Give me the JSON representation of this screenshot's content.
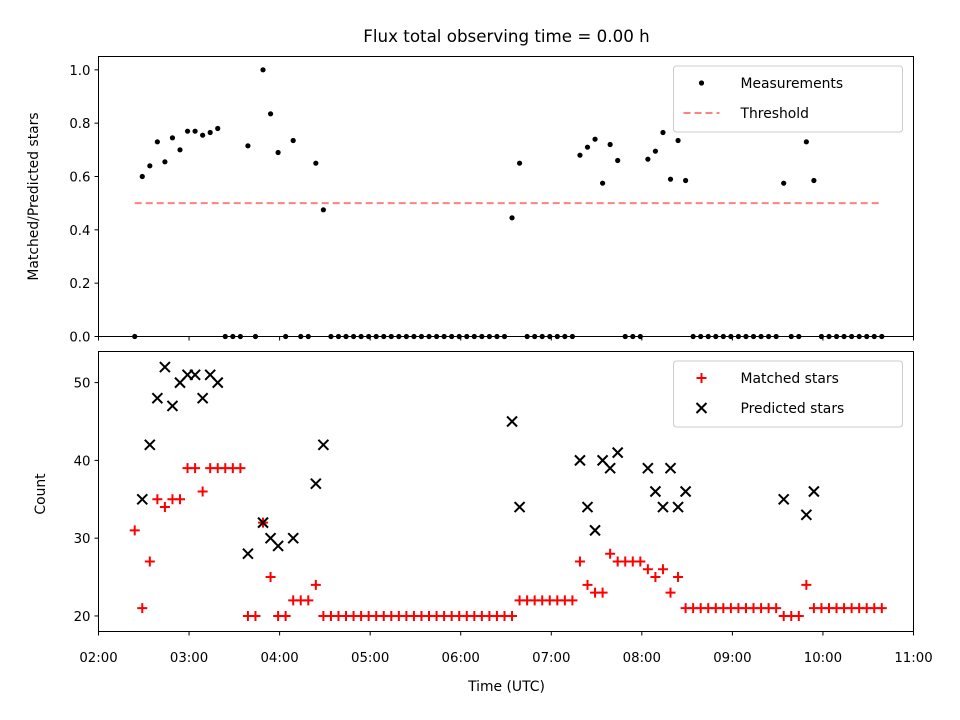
{
  "chart_data": {
    "type": "scatter",
    "title": "Flux total observing time = 0.00 h",
    "xlabel": "Time (UTC)",
    "x_ticks": [
      "02:00",
      "03:00",
      "04:00",
      "05:00",
      "06:00",
      "07:00",
      "08:00",
      "09:00",
      "10:00",
      "11:00"
    ],
    "panels": [
      {
        "ylabel": "Matched/Predicted stars",
        "ylim": [
          0,
          1.05
        ],
        "y_ticks": [
          "0.0",
          "0.2",
          "0.4",
          "0.6",
          "0.8",
          "1.0"
        ],
        "legend_position": "upper right",
        "series": [
          {
            "name": "Measurements",
            "marker": "dot",
            "color": "#000000",
            "points": [
              [
                "02:24",
                0.0
              ],
              [
                "02:29",
                0.6
              ],
              [
                "02:34",
                0.64
              ],
              [
                "02:39",
                0.73
              ],
              [
                "02:44",
                0.655
              ],
              [
                "02:49",
                0.745
              ],
              [
                "02:54",
                0.7
              ],
              [
                "02:59",
                0.77
              ],
              [
                "03:04",
                0.77
              ],
              [
                "03:09",
                0.755
              ],
              [
                "03:14",
                0.765
              ],
              [
                "03:19",
                0.78
              ],
              [
                "03:24",
                0.0
              ],
              [
                "03:29",
                0.0
              ],
              [
                "03:34",
                0.0
              ],
              [
                "03:39",
                0.715
              ],
              [
                "03:44",
                0.0
              ],
              [
                "03:49",
                1.0
              ],
              [
                "03:54",
                0.835
              ],
              [
                "03:59",
                0.69
              ],
              [
                "04:04",
                0.0
              ],
              [
                "04:09",
                0.735
              ],
              [
                "04:14",
                0.0
              ],
              [
                "04:19",
                0.0
              ],
              [
                "04:24",
                0.65
              ],
              [
                "04:29",
                0.475
              ],
              [
                "04:34",
                0.0
              ],
              [
                "04:39",
                0.0
              ],
              [
                "04:44",
                0.0
              ],
              [
                "04:49",
                0.0
              ],
              [
                "04:54",
                0.0
              ],
              [
                "04:59",
                0.0
              ],
              [
                "05:04",
                0.0
              ],
              [
                "05:09",
                0.0
              ],
              [
                "05:14",
                0.0
              ],
              [
                "05:19",
                0.0
              ],
              [
                "05:24",
                0.0
              ],
              [
                "05:29",
                0.0
              ],
              [
                "05:34",
                0.0
              ],
              [
                "05:39",
                0.0
              ],
              [
                "05:44",
                0.0
              ],
              [
                "05:49",
                0.0
              ],
              [
                "05:54",
                0.0
              ],
              [
                "05:59",
                0.0
              ],
              [
                "06:04",
                0.0
              ],
              [
                "06:09",
                0.0
              ],
              [
                "06:14",
                0.0
              ],
              [
                "06:19",
                0.0
              ],
              [
                "06:24",
                0.0
              ],
              [
                "06:29",
                0.0
              ],
              [
                "06:34",
                0.445
              ],
              [
                "06:39",
                0.65
              ],
              [
                "06:44",
                0.0
              ],
              [
                "06:49",
                0.0
              ],
              [
                "06:54",
                0.0
              ],
              [
                "06:59",
                0.0
              ],
              [
                "07:04",
                0.0
              ],
              [
                "07:09",
                0.0
              ],
              [
                "07:14",
                0.0
              ],
              [
                "07:19",
                0.68
              ],
              [
                "07:24",
                0.71
              ],
              [
                "07:29",
                0.74
              ],
              [
                "07:34",
                0.575
              ],
              [
                "07:39",
                0.72
              ],
              [
                "07:44",
                0.66
              ],
              [
                "07:49",
                0.0
              ],
              [
                "07:54",
                0.0
              ],
              [
                "07:59",
                0.0
              ],
              [
                "08:04",
                0.665
              ],
              [
                "08:09",
                0.695
              ],
              [
                "08:14",
                0.765
              ],
              [
                "08:19",
                0.59
              ],
              [
                "08:24",
                0.735
              ],
              [
                "08:29",
                0.585
              ],
              [
                "08:34",
                0.0
              ],
              [
                "08:39",
                0.0
              ],
              [
                "08:44",
                0.0
              ],
              [
                "08:49",
                0.0
              ],
              [
                "08:54",
                0.0
              ],
              [
                "08:59",
                0.0
              ],
              [
                "09:04",
                0.0
              ],
              [
                "09:09",
                0.0
              ],
              [
                "09:14",
                0.0
              ],
              [
                "09:19",
                0.0
              ],
              [
                "09:24",
                0.0
              ],
              [
                "09:29",
                0.0
              ],
              [
                "09:34",
                0.575
              ],
              [
                "09:39",
                0.0
              ],
              [
                "09:44",
                0.0
              ],
              [
                "09:49",
                0.73
              ],
              [
                "09:54",
                0.585
              ],
              [
                "09:59",
                0.0
              ],
              [
                "10:04",
                0.0
              ],
              [
                "10:09",
                0.0
              ],
              [
                "10:14",
                0.0
              ],
              [
                "10:19",
                0.0
              ],
              [
                "10:24",
                0.0
              ],
              [
                "10:29",
                0.0
              ],
              [
                "10:34",
                0.0
              ],
              [
                "10:39",
                0.0
              ]
            ]
          },
          {
            "name": "Threshold",
            "marker": "dashed-line",
            "color": "#ff8080",
            "points": [
              [
                "02:24",
                0.5
              ],
              [
                "10:39",
                0.5
              ]
            ]
          }
        ]
      },
      {
        "ylabel": "Count",
        "ylim": [
          18,
          54
        ],
        "y_ticks": [
          "20",
          "30",
          "40",
          "50"
        ],
        "legend_position": "upper right",
        "series": [
          {
            "name": "Matched stars",
            "marker": "plus",
            "color": "#ff0000",
            "points": [
              [
                "02:24",
                31
              ],
              [
                "02:29",
                21
              ],
              [
                "02:34",
                27
              ],
              [
                "02:39",
                35
              ],
              [
                "02:44",
                34
              ],
              [
                "02:49",
                35
              ],
              [
                "02:54",
                35
              ],
              [
                "02:59",
                39
              ],
              [
                "03:04",
                39
              ],
              [
                "03:09",
                36
              ],
              [
                "03:14",
                39
              ],
              [
                "03:19",
                39
              ],
              [
                "03:24",
                39
              ],
              [
                "03:29",
                39
              ],
              [
                "03:34",
                39
              ],
              [
                "03:39",
                20
              ],
              [
                "03:44",
                20
              ],
              [
                "03:49",
                32
              ],
              [
                "03:54",
                25
              ],
              [
                "03:59",
                20
              ],
              [
                "04:04",
                20
              ],
              [
                "04:09",
                22
              ],
              [
                "04:14",
                22
              ],
              [
                "04:19",
                22
              ],
              [
                "04:24",
                24
              ],
              [
                "04:29",
                20
              ],
              [
                "04:34",
                20
              ],
              [
                "04:39",
                20
              ],
              [
                "04:44",
                20
              ],
              [
                "04:49",
                20
              ],
              [
                "04:54",
                20
              ],
              [
                "04:59",
                20
              ],
              [
                "05:04",
                20
              ],
              [
                "05:09",
                20
              ],
              [
                "05:14",
                20
              ],
              [
                "05:19",
                20
              ],
              [
                "05:24",
                20
              ],
              [
                "05:29",
                20
              ],
              [
                "05:34",
                20
              ],
              [
                "05:39",
                20
              ],
              [
                "05:44",
                20
              ],
              [
                "05:49",
                20
              ],
              [
                "05:54",
                20
              ],
              [
                "05:59",
                20
              ],
              [
                "06:04",
                20
              ],
              [
                "06:09",
                20
              ],
              [
                "06:14",
                20
              ],
              [
                "06:19",
                20
              ],
              [
                "06:24",
                20
              ],
              [
                "06:29",
                20
              ],
              [
                "06:34",
                20
              ],
              [
                "06:39",
                22
              ],
              [
                "06:44",
                22
              ],
              [
                "06:49",
                22
              ],
              [
                "06:54",
                22
              ],
              [
                "06:59",
                22
              ],
              [
                "07:04",
                22
              ],
              [
                "07:09",
                22
              ],
              [
                "07:14",
                22
              ],
              [
                "07:19",
                27
              ],
              [
                "07:24",
                24
              ],
              [
                "07:29",
                23
              ],
              [
                "07:34",
                23
              ],
              [
                "07:39",
                28
              ],
              [
                "07:44",
                27
              ],
              [
                "07:49",
                27
              ],
              [
                "07:54",
                27
              ],
              [
                "07:59",
                27
              ],
              [
                "08:04",
                26
              ],
              [
                "08:09",
                25
              ],
              [
                "08:14",
                26
              ],
              [
                "08:19",
                23
              ],
              [
                "08:24",
                25
              ],
              [
                "08:29",
                21
              ],
              [
                "08:34",
                21
              ],
              [
                "08:39",
                21
              ],
              [
                "08:44",
                21
              ],
              [
                "08:49",
                21
              ],
              [
                "08:54",
                21
              ],
              [
                "08:59",
                21
              ],
              [
                "09:04",
                21
              ],
              [
                "09:09",
                21
              ],
              [
                "09:14",
                21
              ],
              [
                "09:19",
                21
              ],
              [
                "09:24",
                21
              ],
              [
                "09:29",
                21
              ],
              [
                "09:34",
                20
              ],
              [
                "09:39",
                20
              ],
              [
                "09:44",
                20
              ],
              [
                "09:49",
                24
              ],
              [
                "09:54",
                21
              ],
              [
                "09:59",
                21
              ],
              [
                "10:04",
                21
              ],
              [
                "10:09",
                21
              ],
              [
                "10:14",
                21
              ],
              [
                "10:19",
                21
              ],
              [
                "10:24",
                21
              ],
              [
                "10:29",
                21
              ],
              [
                "10:34",
                21
              ],
              [
                "10:39",
                21
              ]
            ]
          },
          {
            "name": "Predicted stars",
            "marker": "x",
            "color": "#000000",
            "points": [
              [
                "02:29",
                35
              ],
              [
                "02:34",
                42
              ],
              [
                "02:39",
                48
              ],
              [
                "02:44",
                52
              ],
              [
                "02:49",
                47
              ],
              [
                "02:54",
                50
              ],
              [
                "02:59",
                51
              ],
              [
                "03:04",
                51
              ],
              [
                "03:09",
                48
              ],
              [
                "03:14",
                51
              ],
              [
                "03:19",
                50
              ],
              [
                "03:39",
                28
              ],
              [
                "03:49",
                32
              ],
              [
                "03:54",
                30
              ],
              [
                "03:59",
                29
              ],
              [
                "04:09",
                30
              ],
              [
                "04:24",
                37
              ],
              [
                "04:29",
                42
              ],
              [
                "06:34",
                45
              ],
              [
                "06:39",
                34
              ],
              [
                "07:19",
                40
              ],
              [
                "07:24",
                34
              ],
              [
                "07:29",
                31
              ],
              [
                "07:34",
                40
              ],
              [
                "07:39",
                39
              ],
              [
                "07:44",
                41
              ],
              [
                "08:04",
                39
              ],
              [
                "08:09",
                36
              ],
              [
                "08:14",
                34
              ],
              [
                "08:19",
                39
              ],
              [
                "08:24",
                34
              ],
              [
                "08:29",
                36
              ],
              [
                "09:34",
                35
              ],
              [
                "09:49",
                33
              ],
              [
                "09:54",
                36
              ]
            ]
          }
        ]
      }
    ]
  }
}
